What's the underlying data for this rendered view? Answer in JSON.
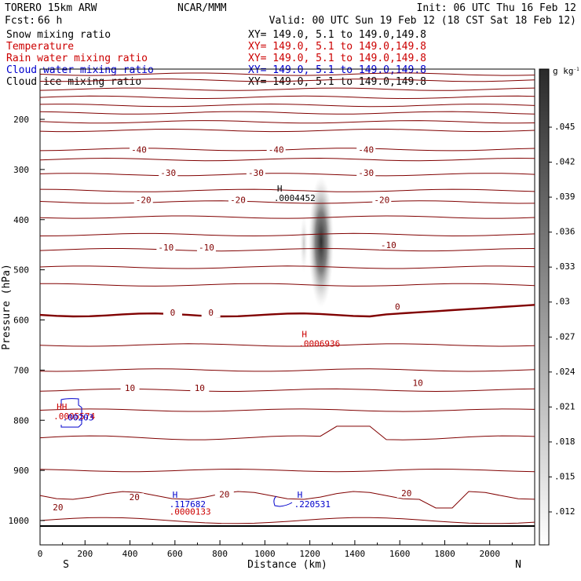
{
  "header": {
    "model": "TORERO  15km ARW",
    "center": "NCAR/MMM",
    "init": "Init: 06 UTC Thu 16 Feb 12",
    "fcst_label": "Fcst:",
    "fcst_value": "66 h",
    "valid": "Valid: 00 UTC Sun 19 Feb 12 (18 CST Sat 18 Feb 12)"
  },
  "legend": [
    {
      "label": "Snow mixing ratio",
      "xy": "XY= 149.0,  5.1 to 149.0,149.8",
      "color": "#000000"
    },
    {
      "label": "Temperature",
      "xy": "XY= 149.0,  5.1 to 149.0,149.8",
      "color": "#cc0000"
    },
    {
      "label": "Rain water mixing ratio",
      "xy": "XY= 149.0,  5.1 to 149.0,149.8",
      "color": "#cc0000"
    },
    {
      "label": "Cloud water mixing ratio",
      "xy": "XY= 149.0,  5.1 to 149.0,149.8",
      "color": "#0000cc"
    },
    {
      "label": "Cloud ice mixing ratio",
      "xy": "XY= 149.0,  5.1 to 149.0,149.8",
      "color": "#000000"
    }
  ],
  "chart_data": {
    "type": "cross-section contour",
    "xlabel": "Distance (km)",
    "ylabel": "Pressure (hPa)",
    "xlim": [
      0,
      2200
    ],
    "ylim": [
      1020,
      90
    ],
    "x_ticks": [
      0,
      200,
      400,
      600,
      800,
      1000,
      1200,
      1400,
      1600,
      1800,
      2000
    ],
    "y_ticks": [
      200,
      300,
      400,
      500,
      600,
      700,
      800,
      900,
      1000
    ],
    "x_end_labels": {
      "left": "S",
      "right": "N"
    },
    "colorbar": {
      "units": "g kg",
      "units_exp": "-1",
      "ticks": [
        ".012",
        ".015",
        ".018",
        ".021",
        ".024",
        ".027",
        ".03",
        ".033",
        ".036",
        ".039",
        ".042",
        ".045"
      ]
    },
    "contour_labels": [
      {
        "text": "-40",
        "x": 440,
        "p": 265,
        "color": "#800000"
      },
      {
        "text": "-40",
        "x": 1050,
        "p": 265,
        "color": "#800000"
      },
      {
        "text": "-40",
        "x": 1450,
        "p": 265,
        "color": "#800000"
      },
      {
        "text": "-30",
        "x": 570,
        "p": 311,
        "color": "#800000"
      },
      {
        "text": "-30",
        "x": 960,
        "p": 311,
        "color": "#800000"
      },
      {
        "text": "-30",
        "x": 1450,
        "p": 311,
        "color": "#800000"
      },
      {
        "text": "-20",
        "x": 460,
        "p": 365,
        "color": "#800000"
      },
      {
        "text": "-20",
        "x": 880,
        "p": 365,
        "color": "#800000"
      },
      {
        "text": "-20",
        "x": 1520,
        "p": 365,
        "color": "#800000"
      },
      {
        "text": "-10",
        "x": 560,
        "p": 460,
        "color": "#800000"
      },
      {
        "text": "-10",
        "x": 740,
        "p": 460,
        "color": "#800000"
      },
      {
        "text": "-10",
        "x": 1550,
        "p": 455,
        "color": "#800000"
      },
      {
        "text": "0",
        "x": 590,
        "p": 590,
        "color": "#800000"
      },
      {
        "text": "0",
        "x": 760,
        "p": 590,
        "color": "#800000"
      },
      {
        "text": "0",
        "x": 1590,
        "p": 578,
        "color": "#800000"
      },
      {
        "text": "10",
        "x": 400,
        "p": 740,
        "color": "#800000"
      },
      {
        "text": "10",
        "x": 710,
        "p": 740,
        "color": "#800000"
      },
      {
        "text": "10",
        "x": 1680,
        "p": 730,
        "color": "#800000"
      },
      {
        "text": "20",
        "x": 80,
        "p": 978,
        "color": "#800000"
      },
      {
        "text": "20",
        "x": 420,
        "p": 958,
        "color": "#800000"
      },
      {
        "text": "20",
        "x": 820,
        "p": 952,
        "color": "#800000"
      },
      {
        "text": "20",
        "x": 1630,
        "p": 950,
        "color": "#800000"
      }
    ],
    "extrema": [
      {
        "mark": "H",
        "value": ".0004452",
        "x": 1040,
        "p": 360,
        "color": "#000000"
      },
      {
        "mark": "H",
        "value": ".0006936",
        "x": 1150,
        "p": 650,
        "color": "#cc0000"
      },
      {
        "mark": "HH",
        "value": ".0005574",
        "x": 60,
        "p": 795,
        "color": "#cc0000"
      },
      {
        "mark": "",
        "value": ".00203",
        "x": 100,
        "p": 797,
        "color": "#0000cc"
      },
      {
        "mark": "H",
        "value": ".117682",
        "x": 575,
        "p": 970,
        "color": "#0000cc"
      },
      {
        "mark": "",
        "value": ".0000133",
        "x": 575,
        "p": 985,
        "color": "#cc0000"
      },
      {
        "mark": "H",
        "value": ".220531",
        "x": 1130,
        "p": 970,
        "color": "#0000cc"
      }
    ]
  }
}
